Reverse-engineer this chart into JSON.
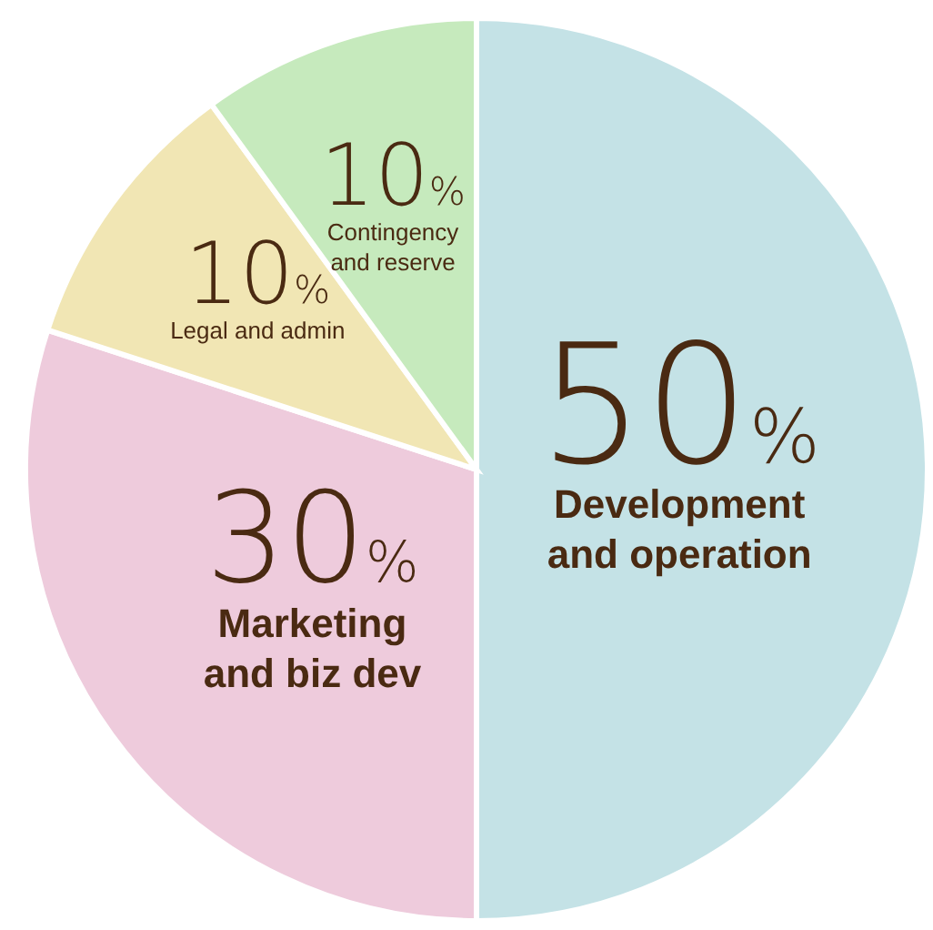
{
  "chart_data": {
    "type": "pie",
    "categories": [
      "Development and operation",
      "Marketing and biz dev",
      "Legal and admin",
      "Contingency and reserve"
    ],
    "values": [
      50,
      30,
      10,
      10
    ],
    "colors": [
      "#c4e2e6",
      "#eecbdc",
      "#f1e6b4",
      "#c6eabd"
    ],
    "value_labels": [
      "50%",
      "30%",
      "10%",
      "10%"
    ]
  }
}
